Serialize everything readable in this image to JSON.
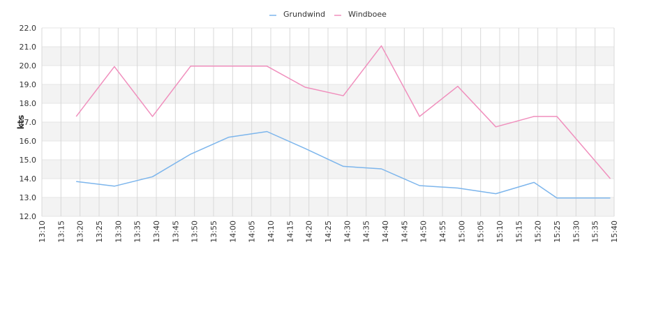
{
  "chart_data": {
    "type": "line",
    "ylabel": "kts",
    "ylim": [
      12.0,
      22.0
    ],
    "y_ticks": [
      "12.0",
      "13.0",
      "14.0",
      "15.0",
      "16.0",
      "17.0",
      "18.0",
      "19.0",
      "20.0",
      "21.0",
      "22.0"
    ],
    "x_ticks": [
      "13:10",
      "13:15",
      "13:20",
      "13:25",
      "13:30",
      "13:35",
      "13:40",
      "13:45",
      "13:50",
      "13:55",
      "14:00",
      "14:05",
      "14:10",
      "14:15",
      "14:20",
      "14:25",
      "14:30",
      "14:35",
      "14:40",
      "14:45",
      "14:50",
      "14:55",
      "15:00",
      "15:05",
      "15:10",
      "15:15",
      "15:20",
      "15:25",
      "15:30",
      "15:35",
      "15:40"
    ],
    "x_start": "13:10",
    "x_end": "15:40",
    "grid": true,
    "legend_position": "top-center",
    "series": [
      {
        "name": "Grundwind",
        "color": "#7cb5ec",
        "x": [
          "13:19",
          "13:29",
          "13:39",
          "13:49",
          "13:59",
          "14:09",
          "14:19",
          "14:29",
          "14:39",
          "14:49",
          "14:59",
          "15:09",
          "15:19",
          "15:25",
          "15:39"
        ],
        "values": [
          13.85,
          13.6,
          14.1,
          15.3,
          16.2,
          16.5,
          15.6,
          14.65,
          14.52,
          13.63,
          13.5,
          13.2,
          13.8,
          12.97,
          12.97
        ]
      },
      {
        "name": "Windboee",
        "color": "#f08fbd",
        "x": [
          "13:19",
          "13:29",
          "13:39",
          "13:49",
          "13:59",
          "14:09",
          "14:19",
          "14:29",
          "14:39",
          "14:49",
          "14:59",
          "15:09",
          "15:19",
          "15:25",
          "15:39"
        ],
        "values": [
          17.3,
          19.95,
          17.3,
          19.97,
          19.97,
          19.97,
          18.85,
          18.4,
          21.05,
          17.3,
          18.9,
          16.75,
          17.3,
          17.3,
          14.0
        ]
      }
    ]
  }
}
